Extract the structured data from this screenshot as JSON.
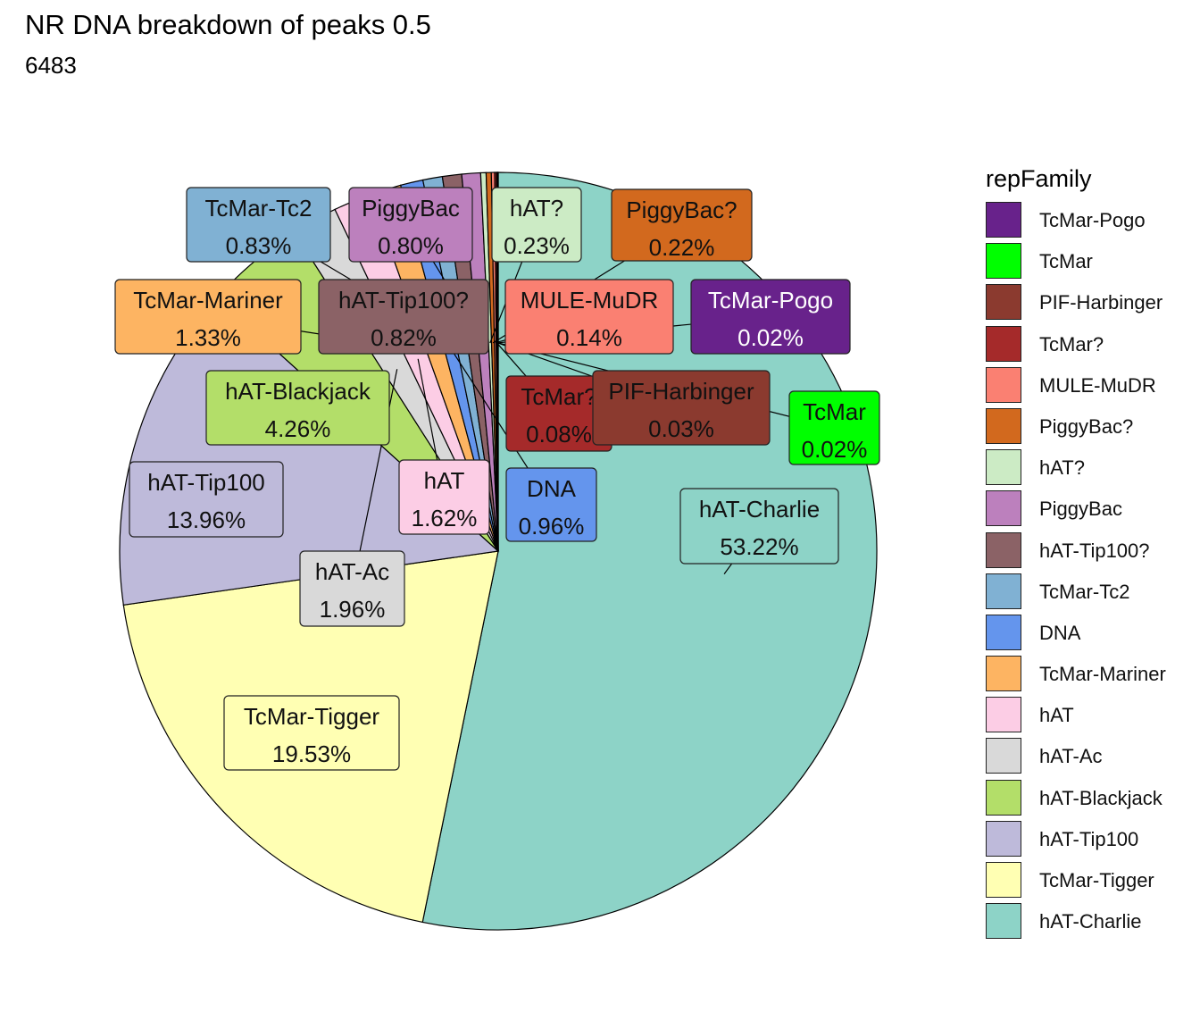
{
  "title": "NR DNA breakdown of peaks 0.5",
  "subtitle": "6483",
  "chart_data": {
    "type": "pie",
    "legend_title": "repFamily",
    "legend_position": "right",
    "total": 6483,
    "slices": [
      {
        "name": "hAT-Charlie",
        "percent": 53.22,
        "label": "53.22%",
        "color": "#8DD3C7"
      },
      {
        "name": "TcMar-Tigger",
        "percent": 19.53,
        "label": "19.53%",
        "color": "#FFFFB3"
      },
      {
        "name": "hAT-Tip100",
        "percent": 13.96,
        "label": "13.96%",
        "color": "#BEBADA"
      },
      {
        "name": "hAT-Blackjack",
        "percent": 4.26,
        "label": "4.26%",
        "color": "#B3DE69"
      },
      {
        "name": "hAT-Ac",
        "percent": 1.96,
        "label": "1.96%",
        "color": "#D9D9D9"
      },
      {
        "name": "hAT",
        "percent": 1.62,
        "label": "1.62%",
        "color": "#FCCDE5"
      },
      {
        "name": "TcMar-Mariner",
        "percent": 1.33,
        "label": "1.33%",
        "color": "#FDB462"
      },
      {
        "name": "DNA",
        "percent": 0.96,
        "label": "0.96%",
        "color": "#6495ED"
      },
      {
        "name": "TcMar-Tc2",
        "percent": 0.83,
        "label": "0.83%",
        "color": "#80B1D3"
      },
      {
        "name": "hAT-Tip100?",
        "percent": 0.82,
        "label": "0.82%",
        "color": "#8B6266"
      },
      {
        "name": "PiggyBac",
        "percent": 0.8,
        "label": "0.80%",
        "color": "#BC80BD"
      },
      {
        "name": "hAT?",
        "percent": 0.23,
        "label": "0.23%",
        "color": "#CCEBC5"
      },
      {
        "name": "PiggyBac?",
        "percent": 0.22,
        "label": "0.22%",
        "color": "#D2691E"
      },
      {
        "name": "MULE-MuDR",
        "percent": 0.14,
        "label": "0.14%",
        "color": "#FA8072"
      },
      {
        "name": "TcMar?",
        "percent": 0.08,
        "label": "0.08%",
        "color": "#A52A2A"
      },
      {
        "name": "PIF-Harbinger",
        "percent": 0.03,
        "label": "0.03%",
        "color": "#8B3A2F"
      },
      {
        "name": "TcMar",
        "percent": 0.02,
        "label": "0.02%",
        "color": "#00FF00"
      },
      {
        "name": "TcMar-Pogo",
        "percent": 0.02,
        "label": "0.02%",
        "color": "#68228B"
      }
    ],
    "legend_order": [
      "TcMar-Pogo",
      "TcMar",
      "PIF-Harbinger",
      "TcMar?",
      "MULE-MuDR",
      "PiggyBac?",
      "hAT?",
      "PiggyBac",
      "hAT-Tip100?",
      "TcMar-Tc2",
      "DNA",
      "TcMar-Mariner",
      "hAT",
      "hAT-Ac",
      "hAT-Blackjack",
      "hAT-Tip100",
      "TcMar-Tigger",
      "hAT-Charlie"
    ]
  }
}
